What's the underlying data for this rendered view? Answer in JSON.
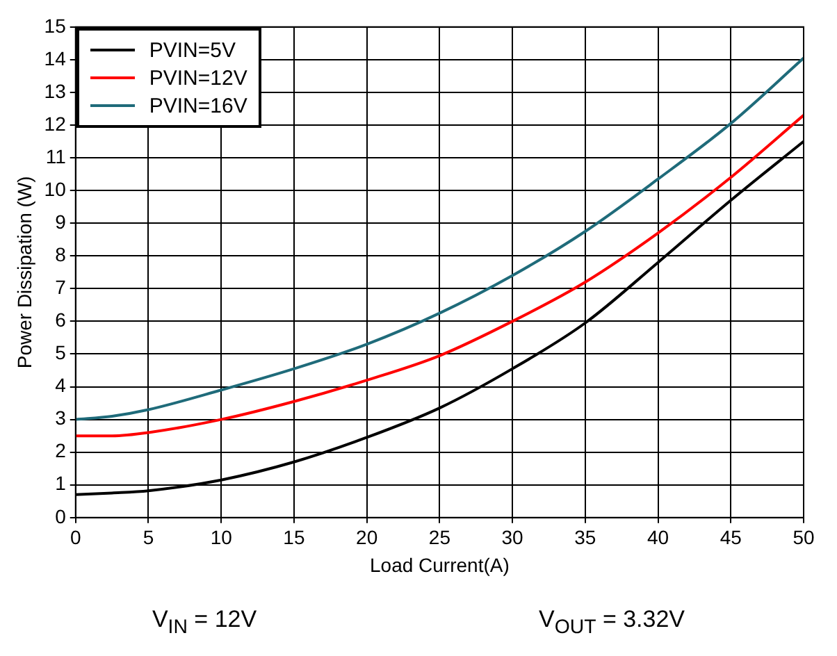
{
  "chart_data": {
    "type": "line",
    "xlabel": "Load Current(A)",
    "ylabel": "Power Dissipation (W)",
    "x": [
      0,
      2.5,
      5,
      10,
      15,
      20,
      25,
      30,
      35,
      40,
      45,
      50
    ],
    "series": [
      {
        "name": "PVIN=5V",
        "color": "#000000",
        "values": [
          0.7,
          0.75,
          0.82,
          1.15,
          1.7,
          2.45,
          3.35,
          4.55,
          5.95,
          7.8,
          9.7,
          11.5
        ]
      },
      {
        "name": "PVIN=12V",
        "color": "#ff0000",
        "values": [
          2.5,
          2.5,
          2.6,
          3.0,
          3.55,
          4.2,
          4.95,
          6.0,
          7.2,
          8.7,
          10.4,
          12.3
        ]
      },
      {
        "name": "PVIN=16V",
        "color": "#1f6b7a",
        "values": [
          3.0,
          3.1,
          3.3,
          3.9,
          4.55,
          5.3,
          6.25,
          7.4,
          8.75,
          10.35,
          12.05,
          14.05
        ]
      }
    ],
    "xlim": [
      0,
      50
    ],
    "xticks": [
      0,
      5,
      10,
      15,
      20,
      25,
      30,
      35,
      40,
      45,
      50
    ],
    "ylim": [
      0,
      15
    ],
    "yticks": [
      0,
      1,
      2,
      3,
      4,
      5,
      6,
      7,
      8,
      9,
      10,
      11,
      12,
      13,
      14,
      15
    ],
    "grid": true,
    "legend": "top left",
    "marker": "none",
    "line_style": "solid",
    "annotations": [
      "V$_{IN}$ = 12V",
      "V$_{OUT}$ = 3.32V"
    ]
  }
}
